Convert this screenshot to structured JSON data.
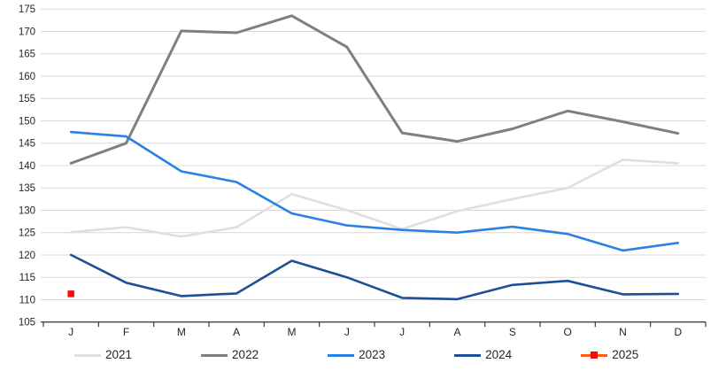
{
  "chart_data": {
    "type": "line",
    "title": "",
    "xlabel": "",
    "ylabel": "",
    "x_categories": [
      "J",
      "F",
      "M",
      "A",
      "M",
      "J",
      "J",
      "A",
      "S",
      "O",
      "N",
      "D"
    ],
    "y_axis": {
      "min": 105,
      "max": 175,
      "step": 5
    },
    "grid": true,
    "legend_position": "bottom",
    "series": [
      {
        "name": "2021",
        "color": "#DFDFDF",
        "values": [
          125.1,
          126.2,
          124.1,
          126.2,
          133.6,
          130.0,
          125.8,
          129.8,
          132.5,
          135.0,
          141.3,
          140.5
        ]
      },
      {
        "name": "2022",
        "color": "#7F7F7F",
        "values": [
          140.5,
          145.0,
          170.1,
          169.7,
          173.5,
          166.5,
          147.3,
          145.4,
          148.2,
          152.2,
          149.8,
          147.2
        ]
      },
      {
        "name": "2023",
        "color": "#2A81E4",
        "values": [
          147.5,
          146.5,
          138.7,
          136.3,
          129.3,
          126.6,
          125.6,
          125.0,
          126.3,
          124.7,
          121.0,
          122.7
        ]
      },
      {
        "name": "2024",
        "color": "#1F5096",
        "values": [
          120.0,
          113.8,
          110.8,
          111.4,
          118.7,
          115.0,
          110.4,
          110.1,
          113.3,
          114.2,
          111.2,
          111.3
        ]
      },
      {
        "name": "2025",
        "color": "#FF5E14",
        "marker": {
          "shape": "square",
          "color": "#F80B0B"
        },
        "values": [
          111.3,
          null,
          null,
          null,
          null,
          null,
          null,
          null,
          null,
          null,
          null,
          null
        ]
      }
    ],
    "style_colors": {
      "axis": "#404040",
      "gridline": "#D9D9D9",
      "tick_text": "#262626"
    }
  }
}
